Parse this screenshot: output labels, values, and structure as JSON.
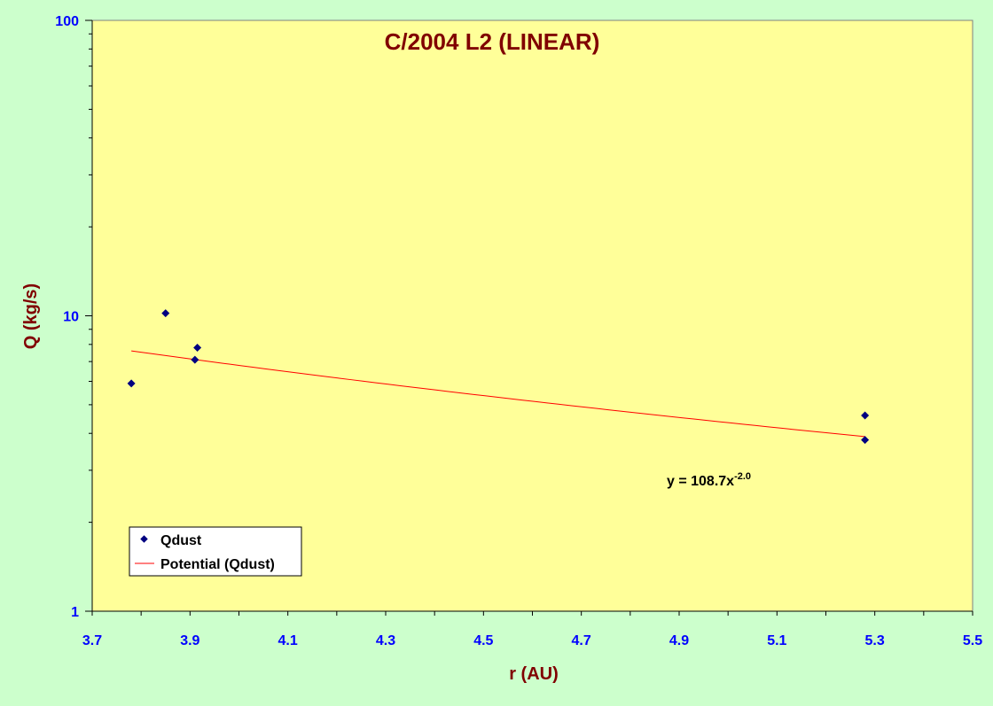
{
  "colors": {
    "page_bg": "#ccffcc",
    "plot_bg": "#ffff99",
    "title": "#800000",
    "axis_label": "#800000",
    "tick_label": "#0000ff",
    "marker": "#000080",
    "trendline": "#ff0000"
  },
  "chart_data": {
    "type": "scatter",
    "title": "C/2004 L2 (LINEAR)",
    "xlabel": "r (AU)",
    "ylabel": "Q (kg/s)",
    "xlim": [
      3.7,
      5.5
    ],
    "ylim": [
      1,
      100
    ],
    "yscale": "log",
    "grid": false,
    "legend_position": "bottom-left",
    "x_ticks": [
      "3.7",
      "3.9",
      "4.1",
      "4.3",
      "4.5",
      "4.7",
      "4.9",
      "5.1",
      "5.3",
      "5.5"
    ],
    "y_ticks": [
      "1",
      "10",
      "100"
    ],
    "series": [
      {
        "name": "Qdust",
        "marker": "diamond",
        "x": [
          3.78,
          3.85,
          3.91,
          3.915,
          5.28,
          5.28
        ],
        "y": [
          5.9,
          10.2,
          7.1,
          7.8,
          4.6,
          3.8
        ]
      }
    ],
    "trendline": {
      "name": "Potential (Qdust)",
      "type": "power",
      "coefficient": 108.7,
      "exponent": -2.0,
      "x_range": [
        3.78,
        5.28
      ],
      "equation_base": "y = 108.7x",
      "equation_exponent": "-2.0"
    }
  }
}
